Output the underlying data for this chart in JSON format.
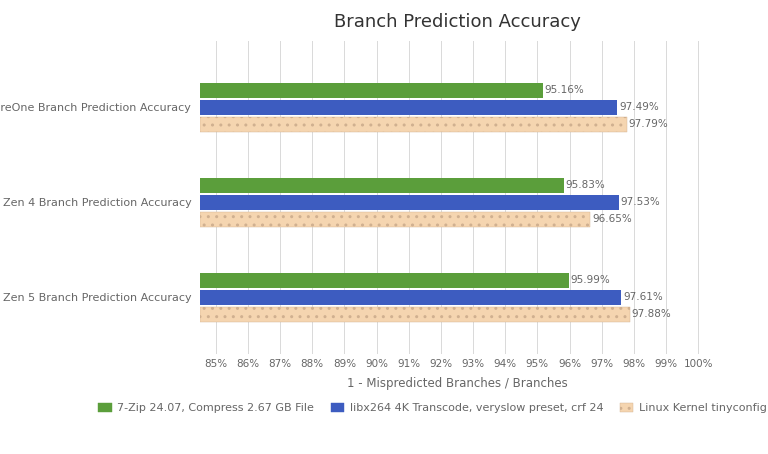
{
  "title": "Branch Prediction Accuracy",
  "xlabel": "1 - Mispredicted Branches / Branches",
  "categories": [
    "AmpereOne Branch Prediction Accuracy",
    "Zen 4 Branch Prediction Accuracy",
    "Zen 5 Branch Prediction Accuracy"
  ],
  "series": [
    {
      "label": "7-Zip 24.07, Compress 2.67 GB File",
      "color": "#5b9e3b",
      "values": [
        95.16,
        95.83,
        95.99
      ],
      "hatch": null
    },
    {
      "label": "libx264 4K Transcode, veryslow preset, crf 24",
      "color": "#3d5cc0",
      "values": [
        97.49,
        97.53,
        97.61
      ],
      "hatch": null
    },
    {
      "label": "Linux Kernel tinyconfig Compile",
      "color": "#f5d5b0",
      "values": [
        97.79,
        96.65,
        97.88
      ],
      "hatch": ".."
    }
  ],
  "xlim_left": 84.5,
  "xlim_right": 100.5,
  "xticks": [
    85,
    86,
    87,
    88,
    89,
    90,
    91,
    92,
    93,
    94,
    95,
    96,
    97,
    98,
    99,
    100
  ],
  "bar_height": 0.18,
  "group_centers": [
    2.0,
    1.0,
    0.0
  ],
  "ylim": [
    -0.6,
    2.7
  ],
  "background_color": "#ffffff",
  "grid_color": "#d9d9d9",
  "text_color": "#666666",
  "title_fontsize": 13,
  "axis_label_fontsize": 8.5,
  "tick_fontsize": 7.5,
  "value_fontsize": 7.5,
  "legend_fontsize": 8,
  "ytick_fontsize": 8
}
